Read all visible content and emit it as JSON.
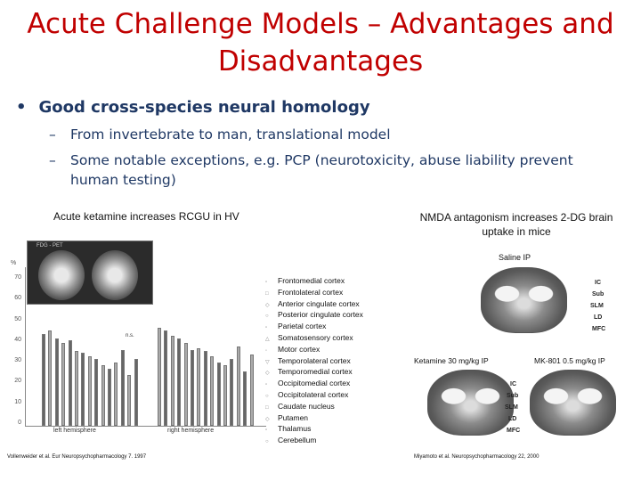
{
  "title": {
    "line1": "Acute Challenge Models – Advantages and",
    "line2": "Disadvantages"
  },
  "bullets": {
    "main": "Good cross-species neural homology",
    "sub1": "From invertebrate to man, translational model",
    "sub2_line1": "Some notable exceptions, e.g. PCP (neurotoxicity, abuse liability prevent",
    "sub2_line2": "human testing)"
  },
  "left_figure": {
    "caption": "Acute ketamine increases RCGU in HV",
    "pet_label": "FDG - PET",
    "y_unit": "%",
    "y_ticks": [
      "70",
      "60",
      "50",
      "40",
      "30",
      "20",
      "10",
      "0"
    ],
    "ns_label": "n.s.",
    "left_hemisphere": "left hemisphere",
    "right_hemisphere": "right hemisphere",
    "legend": [
      "Frontomedial cortex",
      "Frontolateral cortex",
      "Anterior cingulate cortex",
      "Posterior cingulate  cortex",
      "Parietal cortex",
      "Somatosensory cortex",
      "Motor cortex",
      "Temporolateral cortex",
      "Temporomedial cortex",
      "Occipitomedial cortex",
      "Occipitolateral cortex",
      "Caudate nucleus",
      "Putamen",
      "Thalamus",
      "Cerebellum"
    ],
    "citation": "Vollenweider et al.   Eur Neuropsychopharmacology 7. 1997"
  },
  "right_figure": {
    "caption": "NMDA antagonism  increases 2-DG brain uptake in mice",
    "saline": "Saline IP",
    "regions": [
      "IC",
      "Sub",
      "SLM",
      "LD",
      "MFC"
    ],
    "ketamine": "Ketamine 30 mg/kg IP",
    "mk801": "MK-801 0.5 mg/kg IP",
    "citation": "Miyamoto et al.   Neuropsychopharmacology 22, 2000"
  }
}
